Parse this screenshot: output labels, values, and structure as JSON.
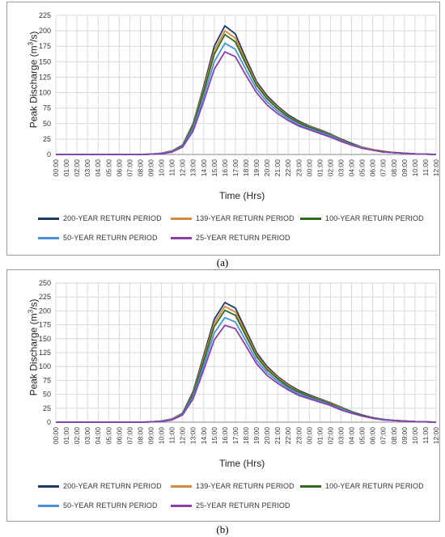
{
  "series_styles": [
    {
      "key": "rp200",
      "color": "#1f3864"
    },
    {
      "key": "rp139",
      "color": "#d6893a"
    },
    {
      "key": "rp100",
      "color": "#2e6b1f"
    },
    {
      "key": "rp50",
      "color": "#4a90d9"
    },
    {
      "key": "rp25",
      "color": "#8b3fa8"
    }
  ],
  "chart_data": [
    {
      "type": "line",
      "caption": "(a)",
      "xlabel": "Time (Hrs)",
      "ylabel": "Peak Discharge (m³/s)",
      "ylabel_main": "Peak Discharge (m",
      "ylabel_sup": "3",
      "ylabel_end": "/s)",
      "ylim": [
        0,
        225
      ],
      "yticks": [
        0,
        25,
        50,
        75,
        100,
        125,
        150,
        175,
        200,
        225
      ],
      "grid": true,
      "legend_position": "bottom",
      "x": [
        "00:00",
        "01:00",
        "02:00",
        "03:00",
        "04:00",
        "05:00",
        "06:00",
        "07:00",
        "08:00",
        "09:00",
        "10:00",
        "11:00",
        "12:00",
        "13:00",
        "14:00",
        "15:00",
        "16:00",
        "17:00",
        "18:00",
        "19:00",
        "20:00",
        "21:00",
        "22:00",
        "23:00",
        "00:00",
        "01:00",
        "02:00",
        "03:00",
        "04:00",
        "05:00",
        "06:00",
        "07:00",
        "08:00",
        "09:00",
        "10:00",
        "11:00",
        "12:00"
      ],
      "series": [
        {
          "name": "200-YEAR RETURN PERIOD",
          "values": [
            0,
            0,
            0,
            0,
            0,
            0,
            0,
            0,
            0,
            0.5,
            2,
            6,
            15,
            50,
            110,
            175,
            208,
            195,
            155,
            118,
            95,
            78,
            64,
            54,
            46,
            40,
            33,
            25,
            18,
            12,
            8,
            5,
            3,
            2,
            1,
            0.5,
            0
          ]
        },
        {
          "name": "139-YEAR RETURN PERIOD",
          "values": [
            0,
            0,
            0,
            0,
            0,
            0,
            0,
            0,
            0,
            0.5,
            2,
            6,
            14,
            48,
            106,
            168,
            200,
            188,
            150,
            115,
            92,
            76,
            62,
            52,
            45,
            39,
            32,
            24,
            17,
            12,
            8,
            5,
            3,
            2,
            1,
            0.5,
            0
          ]
        },
        {
          "name": "100-YEAR RETURN PERIOD",
          "values": [
            0,
            0,
            0,
            0,
            0,
            0,
            0,
            0,
            0,
            0.5,
            2,
            5,
            14,
            46,
            102,
            162,
            194,
            182,
            146,
            112,
            90,
            74,
            61,
            51,
            44,
            38,
            31,
            23,
            17,
            11,
            7,
            5,
            3,
            2,
            1,
            0.5,
            0
          ]
        },
        {
          "name": "50-YEAR RETURN PERIOD",
          "values": [
            0,
            0,
            0,
            0,
            0,
            0,
            0,
            0,
            0,
            0.5,
            2,
            5,
            13,
            42,
            94,
            150,
            180,
            170,
            137,
            106,
            85,
            70,
            58,
            48,
            42,
            36,
            30,
            22,
            16,
            11,
            7,
            4,
            3,
            2,
            1,
            0.5,
            0
          ]
        },
        {
          "name": "25-YEAR RETURN PERIOD",
          "values": [
            0,
            0,
            0,
            0,
            0,
            0,
            0,
            0,
            0,
            0.5,
            1,
            4,
            12,
            38,
            86,
            138,
            166,
            158,
            128,
            100,
            80,
            66,
            55,
            46,
            40,
            34,
            28,
            21,
            15,
            10,
            7,
            4,
            3,
            2,
            1,
            0.5,
            0
          ]
        }
      ]
    },
    {
      "type": "line",
      "caption": "(b)",
      "xlabel": "Time (Hrs)",
      "ylabel": "Peak Discharge (m³/s)",
      "ylabel_main": "Peak Discharge (m",
      "ylabel_sup": "3",
      "ylabel_end": "/s)",
      "ylim": [
        0,
        250
      ],
      "yticks": [
        0,
        25,
        50,
        75,
        100,
        125,
        150,
        175,
        200,
        225,
        250
      ],
      "grid": true,
      "legend_position": "bottom",
      "x": [
        "00:00",
        "01:00",
        "02:00",
        "03:00",
        "04:00",
        "05:00",
        "06:00",
        "07:00",
        "08:00",
        "09:00",
        "10:00",
        "11:00",
        "12:00",
        "13:00",
        "14:00",
        "15:00",
        "16:00",
        "17:00",
        "18:00",
        "19:00",
        "20:00",
        "21:00",
        "22:00",
        "23:00",
        "00:00",
        "01:00",
        "02:00",
        "03:00",
        "04:00",
        "05:00",
        "06:00",
        "07:00",
        "08:00",
        "09:00",
        "10:00",
        "11:00",
        "12:00"
      ],
      "series": [
        {
          "name": "200-YEAR RETURN PERIOD",
          "values": [
            0,
            0,
            0,
            0,
            0,
            0,
            0,
            0,
            0,
            0.5,
            2,
            6,
            16,
            55,
            120,
            185,
            215,
            205,
            165,
            125,
            100,
            82,
            68,
            57,
            49,
            42,
            35,
            27,
            19,
            13,
            8,
            5,
            3,
            2,
            1,
            0.5,
            0
          ]
        },
        {
          "name": "139-YEAR RETURN PERIOD",
          "values": [
            0,
            0,
            0,
            0,
            0,
            0,
            0,
            0,
            0,
            0.5,
            2,
            6,
            15,
            52,
            115,
            178,
            208,
            198,
            160,
            121,
            97,
            80,
            66,
            55,
            47,
            41,
            34,
            26,
            18,
            12,
            8,
            5,
            3,
            2,
            1,
            0.5,
            0
          ]
        },
        {
          "name": "100-YEAR RETURN PERIOD",
          "values": [
            0,
            0,
            0,
            0,
            0,
            0,
            0,
            0,
            0,
            0.5,
            2,
            5,
            15,
            50,
            110,
            172,
            201,
            192,
            155,
            118,
            94,
            78,
            64,
            54,
            46,
            40,
            33,
            25,
            18,
            12,
            8,
            5,
            3,
            2,
            1,
            0.5,
            0
          ]
        },
        {
          "name": "50-YEAR RETURN PERIOD",
          "values": [
            0,
            0,
            0,
            0,
            0,
            0,
            0,
            0,
            0,
            0.5,
            2,
            5,
            14,
            46,
            102,
            160,
            188,
            180,
            146,
            111,
            89,
            74,
            61,
            51,
            44,
            38,
            31,
            24,
            17,
            11,
            7,
            5,
            3,
            2,
            1,
            0.5,
            0
          ]
        },
        {
          "name": "25-YEAR RETURN PERIOD",
          "values": [
            0,
            0,
            0,
            0,
            0,
            0,
            0,
            0,
            0,
            0.5,
            1,
            4,
            13,
            42,
            94,
            148,
            174,
            168,
            137,
            105,
            84,
            70,
            58,
            48,
            42,
            36,
            30,
            22,
            16,
            11,
            7,
            4,
            3,
            2,
            1,
            0.5,
            0
          ]
        }
      ]
    }
  ]
}
